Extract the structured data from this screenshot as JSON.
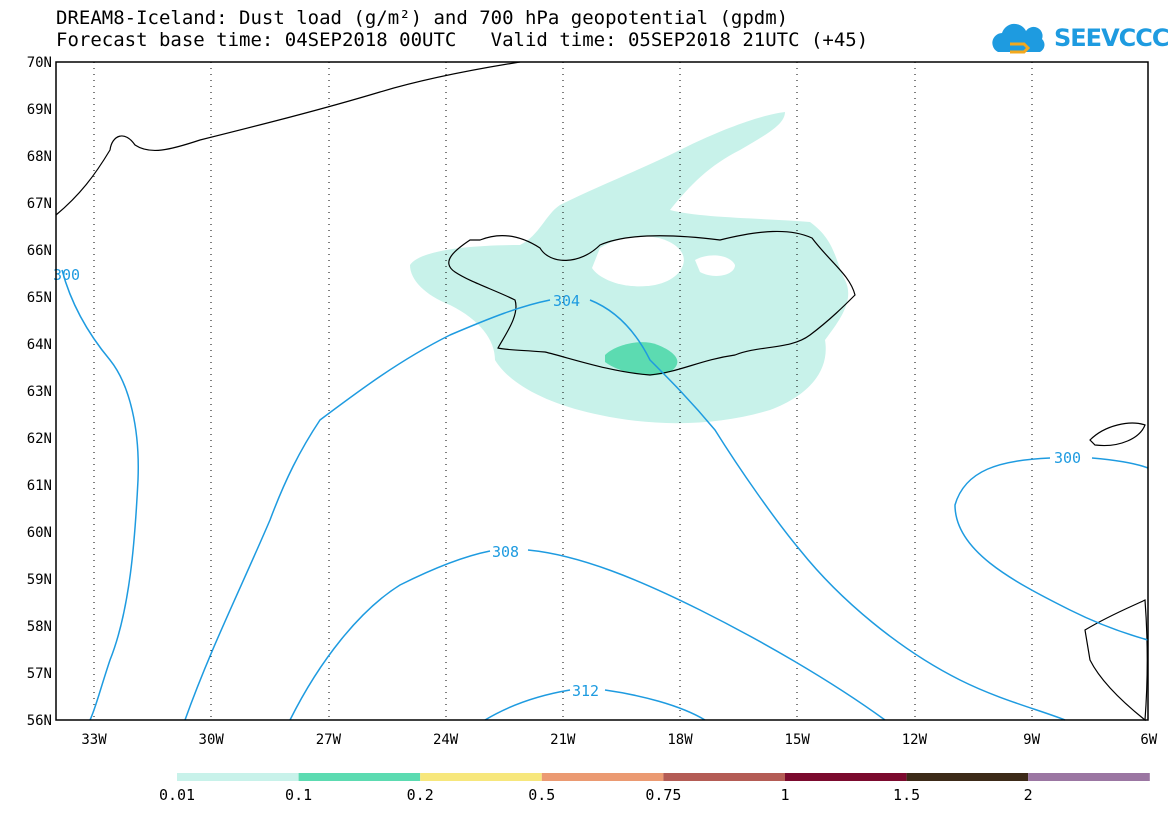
{
  "title": {
    "line1": "DREAM8-Iceland: Dust load (g/m²) and 700 hPa geopotential (gpdm)",
    "line2": "Forecast base time: 04SEP2018 00UTC   Valid time: 05SEP2018 21UTC (+45)"
  },
  "logo": {
    "text": "SEEVCCC",
    "icon": "cloud-logo-icon"
  },
  "map": {
    "lat_labels": [
      "70N",
      "69N",
      "68N",
      "67N",
      "66N",
      "65N",
      "64N",
      "63N",
      "62N",
      "61N",
      "60N",
      "59N",
      "58N",
      "57N",
      "56N"
    ],
    "lon_labels": [
      "33W",
      "30W",
      "27W",
      "24W",
      "21W",
      "18W",
      "15W",
      "12W",
      "9W",
      "6W"
    ],
    "grid": true,
    "contour_labels": [
      "304",
      "308",
      "312",
      "300",
      "300"
    ]
  },
  "colorbar": {
    "labels": [
      "0.01",
      "0.1",
      "0.2",
      "0.5",
      "0.75",
      "1",
      "1.5",
      "2"
    ],
    "colors": [
      "#c8f2ea",
      "#5cdbb1",
      "#f7e77c",
      "#eb9a72",
      "#b45c55",
      "#7b0a2e",
      "#3c2a18",
      "#9b76a2"
    ]
  },
  "colors": {
    "contour": "#1e9be0",
    "dust_light": "#c8f2ea",
    "dust_mid": "#5cdbb1"
  }
}
